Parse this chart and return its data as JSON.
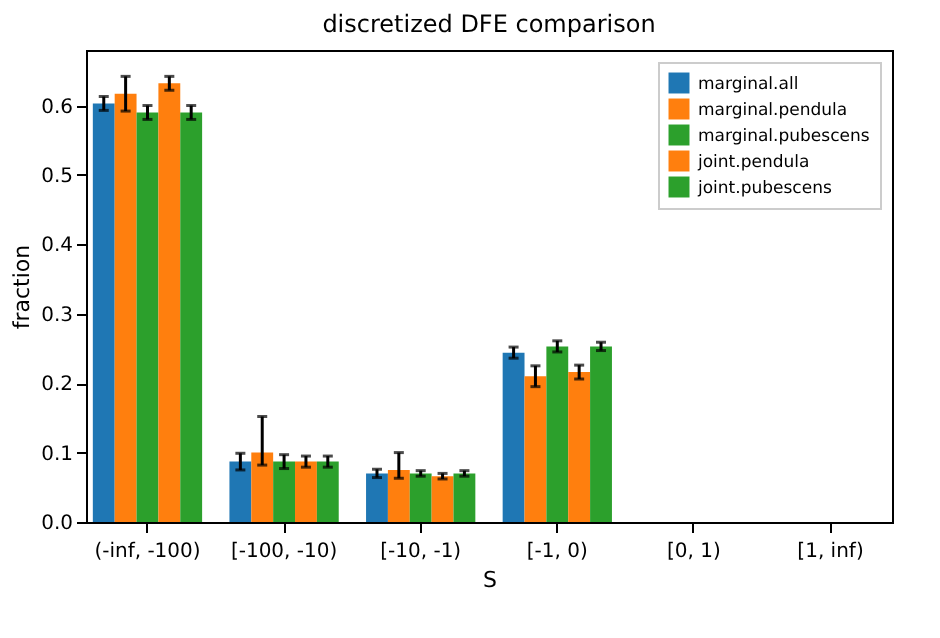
{
  "chart_data": {
    "type": "bar",
    "title": "discretized DFE comparison",
    "xlabel": "S",
    "ylabel": "fraction",
    "categories": [
      "(-inf, -100)",
      "[-100, -10)",
      "[-10, -1)",
      "[-1, 0)",
      "[0, 1)",
      "[1, inf)"
    ],
    "series": [
      {
        "name": "marginal.all",
        "color": "#1f77b4",
        "values": [
          0.603,
          0.087,
          0.07,
          0.244,
          0,
          0
        ],
        "errors": [
          0.01,
          0.012,
          0.006,
          0.008,
          null,
          null
        ]
      },
      {
        "name": "marginal.pendula",
        "color": "#ff7f0e",
        "values": [
          0.617,
          0.1,
          0.075,
          0.21,
          0,
          0
        ],
        "errors": [
          0.025,
          [
            0.082,
            0.152
          ],
          [
            0.063,
            0.1
          ],
          0.015,
          null,
          null
        ]
      },
      {
        "name": "marginal.pubescens",
        "color": "#2ca02c",
        "values": [
          0.59,
          0.087,
          0.07,
          0.253,
          0,
          0
        ],
        "errors": [
          0.01,
          0.01,
          0.004,
          0.008,
          null,
          null
        ]
      },
      {
        "name": "joint.pendula",
        "color": "#ff7f0e",
        "values": [
          0.632,
          0.087,
          0.066,
          0.216,
          0,
          0
        ],
        "errors": [
          0.01,
          0.008,
          0.004,
          0.01,
          null,
          null
        ]
      },
      {
        "name": "joint.pubescens",
        "color": "#2ca02c",
        "values": [
          0.59,
          0.087,
          0.07,
          0.253,
          0,
          0
        ],
        "errors": [
          0.01,
          0.008,
          0.004,
          0.006,
          null,
          null
        ]
      }
    ],
    "ylim": [
      0,
      0.68
    ],
    "yticks": [
      {
        "value": 0,
        "label": "0.0"
      },
      {
        "value": 0.1,
        "label": "0.1"
      },
      {
        "value": 0.2,
        "label": "0.2"
      },
      {
        "value": 0.3,
        "label": "0.3"
      },
      {
        "value": 0.4,
        "label": "0.4"
      },
      {
        "value": 0.5,
        "label": "0.5"
      },
      {
        "value": 0.6,
        "label": "0.6"
      }
    ],
    "legend": "top right",
    "grid": false
  }
}
